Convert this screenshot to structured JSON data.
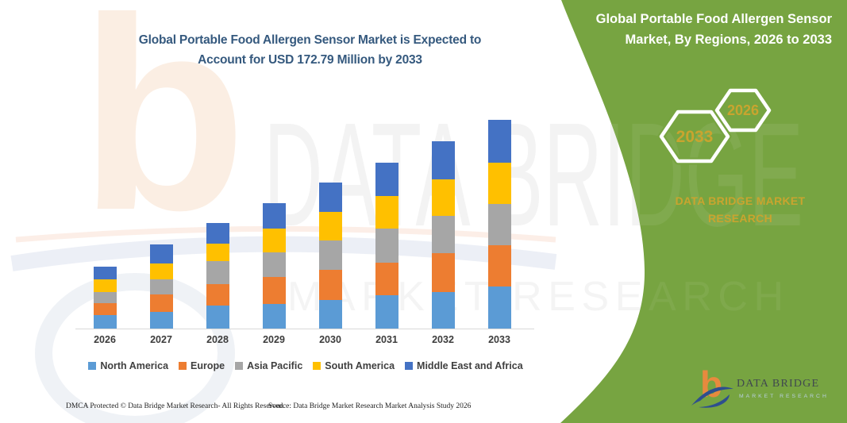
{
  "left_panel": {
    "title_line1": "Global Portable Food Allergen Sensor Market is Expected to",
    "title_line2": "Account for USD 172.79 Million by 2033",
    "footer_dmca": "DMCA Protected © Data Bridge Market Research-  All Rights Reserved.",
    "footer_source": "Source: Data Bridge Market Research  Market Analysis Study 2026"
  },
  "right_panel": {
    "title_line1": "Global Portable Food Allergen Sensor",
    "title_line2": "Market, By Regions, 2026 to 2033",
    "badge_back": "2033",
    "badge_front": "2026",
    "brand_line1": "DATA BRIDGE MARKET",
    "brand_line2": "RESEARCH",
    "background_color": "#77A441",
    "accent_gold": "#C9A42F"
  },
  "logo": {
    "letter": "b",
    "name": "DATA BRIDGE",
    "tagline": "MARKET RESEARCH"
  },
  "watermark": {
    "letter": "b",
    "line1": "DATA BRIDGE",
    "line2": "MARKET RESEARCH"
  },
  "chart_data": {
    "type": "bar",
    "stacked": true,
    "title": "Global Portable Food Allergen Sensor Market, USD Million",
    "unit": "USD Million",
    "categories": [
      "2026",
      "2027",
      "2028",
      "2029",
      "2030",
      "2031",
      "2032",
      "2033"
    ],
    "series": [
      {
        "name": "North America",
        "color": "#5B9BD5",
        "values": [
          11.5,
          14.1,
          19.0,
          20.7,
          23.6,
          27.5,
          30.1,
          34.7
        ]
      },
      {
        "name": "Europe",
        "color": "#ED7D31",
        "values": [
          9.8,
          14.4,
          17.7,
          22.3,
          24.9,
          26.8,
          32.1,
          34.0
        ]
      },
      {
        "name": "Asia Pacific",
        "color": "#A6A6A6",
        "values": [
          8.8,
          12.4,
          19.0,
          19.9,
          24.2,
          28.8,
          30.8,
          34.7
        ]
      },
      {
        "name": "South America",
        "color": "#FFC000",
        "values": [
          10.7,
          12.7,
          14.4,
          20.0,
          24.2,
          26.8,
          30.8,
          34.0
        ]
      },
      {
        "name": "Middle East and Africa",
        "color": "#4472C4",
        "values": [
          10.5,
          15.9,
          17.0,
          20.7,
          24.2,
          27.5,
          31.4,
          35.3
        ]
      }
    ],
    "totals": [
      51.3,
      69.5,
      87.1,
      103.6,
      121.1,
      137.4,
      155.2,
      172.79
    ],
    "ylim": [
      0,
      180
    ],
    "grid": false,
    "x_axis_line_color": "#D9D9D9",
    "legend_position": "bottom"
  }
}
